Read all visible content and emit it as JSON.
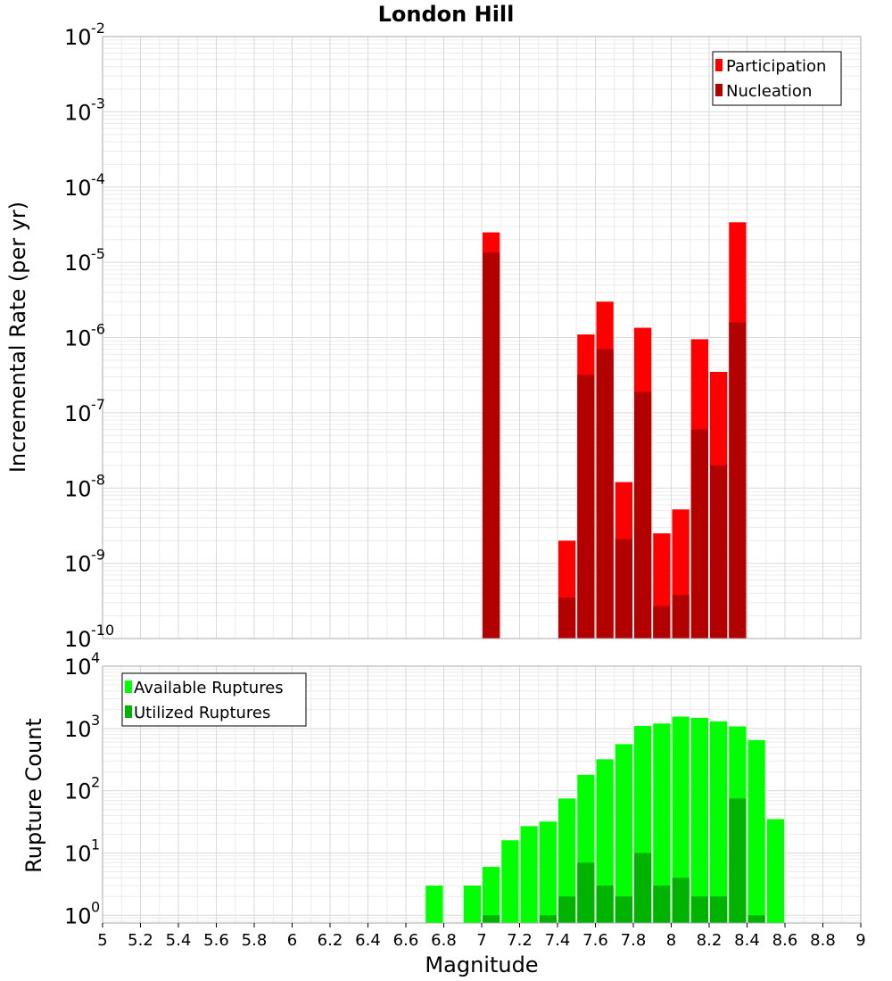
{
  "chart_data": [
    {
      "type": "bar",
      "title": "London Hill",
      "xlabel": "",
      "ylabel": "Incremental Rate (per yr)",
      "y_scale": "log",
      "ylim": [
        1e-10,
        0.01
      ],
      "xlim": [
        5,
        9
      ],
      "grid": true,
      "legend": "top-right",
      "bar_width": 0.1,
      "colors": {
        "Participation": "#ff0000",
        "Nucleation": "#b30000"
      },
      "x": [
        7.05,
        7.45,
        7.55,
        7.65,
        7.75,
        7.85,
        7.95,
        8.05,
        8.15,
        8.25,
        8.35
      ],
      "series": [
        {
          "name": "Participation",
          "values": [
            2.5e-05,
            2e-09,
            1.1e-06,
            3e-06,
            1.2e-08,
            1.35e-06,
            2.5e-09,
            5.2e-09,
            9.5e-07,
            3.5e-07,
            3.4e-05
          ]
        },
        {
          "name": "Nucleation",
          "values": [
            1.35e-05,
            3.5e-10,
            3.2e-07,
            7e-07,
            2.1e-09,
            1.9e-07,
            2.7e-10,
            3.8e-10,
            6e-08,
            2e-08,
            1.6e-06
          ]
        }
      ]
    },
    {
      "type": "bar",
      "title": "",
      "xlabel": "Magnitude",
      "ylabel": "Rupture Count",
      "y_scale": "log",
      "ylim": [
        0.75,
        10000
      ],
      "xlim": [
        5,
        9
      ],
      "grid": true,
      "legend": "top-left",
      "bar_width": 0.1,
      "colors": {
        "Available Ruptures": "#00ff00",
        "Utilized Ruptures": "#00b300"
      },
      "series": [
        {
          "name": "Available Ruptures",
          "x": [
            6.75,
            6.95,
            7.05,
            7.15,
            7.25,
            7.35,
            7.45,
            7.55,
            7.65,
            7.75,
            7.85,
            7.95,
            8.05,
            8.15,
            8.25,
            8.35,
            8.45,
            8.55
          ],
          "values": [
            3,
            3,
            6,
            16,
            27,
            32,
            75,
            180,
            320,
            560,
            1100,
            1200,
            1550,
            1480,
            1300,
            1080,
            650,
            35
          ]
        },
        {
          "name": "Utilized Ruptures",
          "x": [
            7.05,
            7.35,
            7.45,
            7.55,
            7.65,
            7.75,
            7.85,
            7.95,
            8.05,
            8.15,
            8.25,
            8.35,
            8.45
          ],
          "values": [
            1,
            1,
            2,
            7,
            3,
            2,
            10,
            3,
            4,
            2,
            2,
            75,
            1
          ]
        }
      ]
    }
  ],
  "x_ticks": [
    "5",
    "5.2",
    "5.4",
    "5.6",
    "5.8",
    "6",
    "6.2",
    "6.4",
    "6.6",
    "6.8",
    "7",
    "7.2",
    "7.4",
    "7.6",
    "7.8",
    "8",
    "8.2",
    "8.4",
    "8.6",
    "8.8",
    "9"
  ],
  "top_y_ticks": [
    {
      "base": "10",
      "exp": "-2"
    },
    {
      "base": "10",
      "exp": "-3"
    },
    {
      "base": "10",
      "exp": "-4"
    },
    {
      "base": "10",
      "exp": "-5"
    },
    {
      "base": "10",
      "exp": "-6"
    },
    {
      "base": "10",
      "exp": "-7"
    },
    {
      "base": "10",
      "exp": "-8"
    },
    {
      "base": "10",
      "exp": "-9"
    },
    {
      "base": "10",
      "exp": "-10"
    }
  ],
  "bottom_y_ticks": [
    {
      "base": "10",
      "exp": "4"
    },
    {
      "base": "10",
      "exp": "3"
    },
    {
      "base": "10",
      "exp": "2"
    },
    {
      "base": "10",
      "exp": "1"
    },
    {
      "base": "10",
      "exp": "0"
    }
  ]
}
